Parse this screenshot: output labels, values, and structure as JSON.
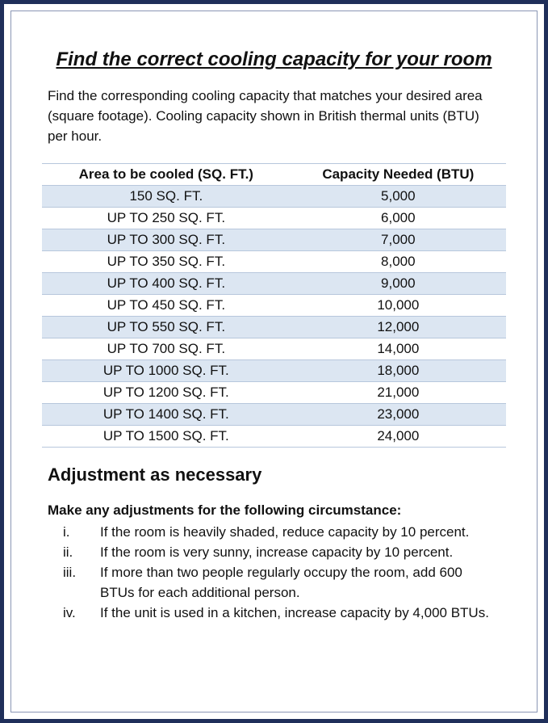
{
  "header": {
    "title": "Find the correct cooling capacity for your room",
    "intro": "Find the corresponding cooling capacity that matches your desired area (square footage). Cooling capacity shown in British thermal units (BTU) per hour."
  },
  "table": {
    "columns": [
      "Area to be cooled (SQ. FT.)",
      "Capacity Needed (BTU)"
    ],
    "rows": [
      [
        "150 SQ. FT.",
        "5,000"
      ],
      [
        "UP TO 250 SQ. FT.",
        "6,000"
      ],
      [
        "UP TO 300 SQ. FT.",
        "7,000"
      ],
      [
        "UP TO 350 SQ. FT.",
        "8,000"
      ],
      [
        "UP TO 400 SQ. FT.",
        "9,000"
      ],
      [
        "UP TO 450 SQ. FT.",
        "10,000"
      ],
      [
        "UP TO 550 SQ. FT.",
        "12,000"
      ],
      [
        "UP TO 700 SQ. FT.",
        "14,000"
      ],
      [
        "UP TO 1000 SQ. FT.",
        "18,000"
      ],
      [
        "UP TO 1200 SQ. FT.",
        "21,000"
      ],
      [
        "UP TO 1400 SQ. FT.",
        "23,000"
      ],
      [
        "UP TO 1500 SQ. FT.",
        "24,000"
      ]
    ]
  },
  "adjustment": {
    "heading": "Adjustment as necessary",
    "subheading": "Make any adjustments for the following circumstance:",
    "items": [
      {
        "marker": "i.",
        "text": "If the room is heavily shaded, reduce capacity by 10 percent."
      },
      {
        "marker": "ii.",
        "text": "If the room is very sunny, increase capacity by 10 percent."
      },
      {
        "marker": "iii.",
        "text": "If more than two people regularly occupy the room, add 600 BTUs for each additional person."
      },
      {
        "marker": "iv.",
        "text": "If the unit is used in a kitchen, increase capacity by 4,000 BTUs."
      }
    ]
  }
}
